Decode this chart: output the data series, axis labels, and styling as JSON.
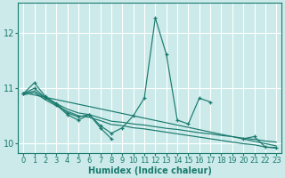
{
  "xlabel": "Humidex (Indice chaleur)",
  "bg_color": "#cceaea",
  "grid_color": "#ffffff",
  "line_color": "#1a7a6e",
  "xlim": [
    -0.5,
    23.5
  ],
  "ylim": [
    9.82,
    12.55
  ],
  "yticks": [
    10,
    11,
    12
  ],
  "xticks": [
    0,
    1,
    2,
    3,
    4,
    5,
    6,
    7,
    8,
    9,
    10,
    11,
    12,
    13,
    14,
    15,
    16,
    17,
    18,
    19,
    20,
    21,
    22,
    23
  ],
  "series": [
    {
      "x": [
        0,
        1,
        2,
        3,
        4,
        5,
        6,
        7,
        8,
        9,
        10,
        11,
        12,
        13,
        14,
        15,
        16,
        17,
        18,
        19,
        20,
        21,
        22,
        23
      ],
      "y": [
        10.9,
        11.1,
        10.85,
        10.72,
        10.55,
        10.48,
        10.52,
        10.32,
        10.18,
        10.28,
        10.5,
        10.82,
        12.28,
        11.62,
        10.42,
        10.35,
        10.82,
        10.75,
        null,
        null,
        10.08,
        10.12,
        9.93,
        9.92
      ],
      "markers": true
    },
    {
      "x": [
        0,
        1,
        2,
        3,
        4,
        5,
        6,
        7,
        8,
        9,
        10,
        11,
        12,
        13,
        14,
        15,
        16,
        17,
        18,
        19,
        20,
        21,
        22,
        23
      ],
      "y": [
        10.9,
        11.0,
        10.83,
        10.7,
        10.52,
        10.42,
        10.52,
        10.28,
        10.08,
        null,
        null,
        null,
        null,
        null,
        null,
        null,
        null,
        null,
        null,
        null,
        null,
        null,
        null,
        null
      ],
      "markers": true
    },
    {
      "x": [
        0,
        1,
        2,
        3,
        4,
        5,
        6,
        7,
        8,
        9,
        10,
        11,
        12,
        13,
        14,
        15,
        16,
        17,
        18,
        19,
        20,
        21,
        22,
        23
      ],
      "y": [
        10.9,
        10.95,
        10.82,
        10.72,
        10.62,
        10.55,
        10.52,
        10.46,
        10.4,
        10.38,
        10.35,
        10.33,
        10.3,
        10.27,
        10.25,
        10.22,
        10.19,
        10.17,
        10.14,
        10.12,
        10.09,
        10.07,
        10.04,
        10.02
      ],
      "markers": false
    },
    {
      "x": [
        0,
        1,
        2,
        3,
        4,
        5,
        6,
        7,
        8,
        9,
        10,
        11,
        12,
        13,
        14,
        15,
        16,
        17,
        18,
        19,
        20,
        21,
        22,
        23
      ],
      "y": [
        10.88,
        10.92,
        10.79,
        10.68,
        10.58,
        10.5,
        10.47,
        10.41,
        10.34,
        10.32,
        10.28,
        10.26,
        10.23,
        10.2,
        10.17,
        10.14,
        10.11,
        10.08,
        10.05,
        10.02,
        9.99,
        9.97,
        9.93,
        9.91
      ],
      "markers": false
    },
    {
      "x": [
        0,
        23
      ],
      "y": [
        10.92,
        9.95
      ],
      "markers": false
    }
  ]
}
